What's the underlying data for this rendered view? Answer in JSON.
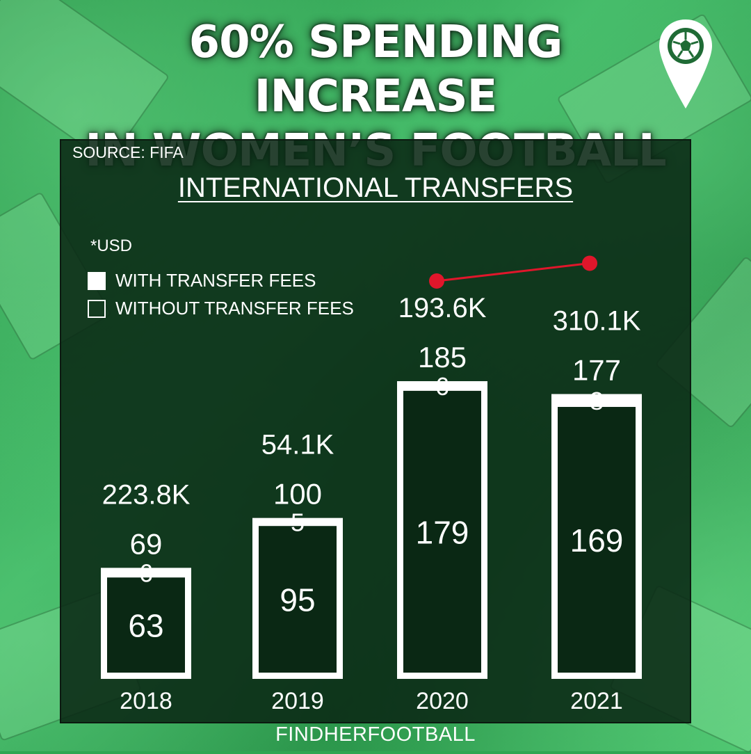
{
  "title_line1": "60% SPENDING INCREASE",
  "title_line2": "IN WOMEN’S FOOTBALL",
  "logo_icon": "location-pin-football-icon",
  "colors": {
    "accent": "#e0162b",
    "panel": "#0a2814",
    "background": "#2fa652"
  },
  "footer": "FINDHERFOOTBALL",
  "chart_data": {
    "type": "bar",
    "source": "SOURCE: FIFA",
    "title": "INTERNATIONAL TRANSFERS",
    "unit_note": "*USD",
    "legend": [
      {
        "label": "WITH TRANSFER FEES",
        "style": "filled"
      },
      {
        "label": "WITHOUT TRANSFER FEES",
        "style": "outline"
      }
    ],
    "categories": [
      "2018",
      "2019",
      "2020",
      "2021"
    ],
    "totals": [
      69,
      100,
      185,
      177
    ],
    "series": [
      {
        "name": "WITH TRANSFER FEES",
        "values": [
          6,
          5,
          6,
          8
        ]
      },
      {
        "name": "WITHOUT TRANSFER FEES",
        "values": [
          63,
          95,
          179,
          169
        ]
      }
    ],
    "spending": [
      223.8,
      54.1,
      193.6,
      310.1
    ],
    "spending_labels": [
      "223.8K",
      "54.1K",
      "193.6K",
      "310.1K"
    ],
    "trend_line": {
      "from": "2020",
      "to": "2021"
    },
    "ylim": [
      0,
      185
    ]
  }
}
